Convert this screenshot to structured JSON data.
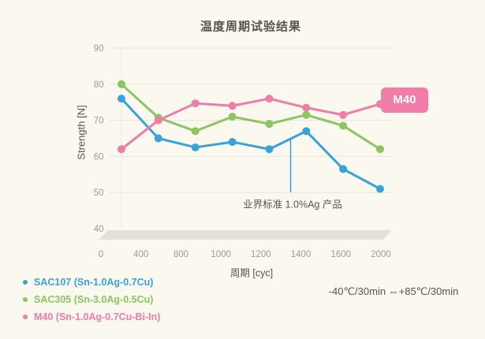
{
  "colors": {
    "background": "#FAF8EF",
    "gridline": "#E9E6DC",
    "axis_band": "#E4E1D8",
    "axis_text": "#A09D8F",
    "text_dark": "#57554B",
    "sac107_blue": "#38A3DB",
    "sac305_green": "#8CC561",
    "m40_pink": "#F07CA8"
  },
  "chart_data": {
    "type": "line",
    "title": "温度周期试验结果",
    "xlabel": "周期 [cyc]",
    "ylabel": "Strength [N]",
    "categories": [
      0,
      400,
      800,
      1000,
      1200,
      1400,
      1600,
      2000
    ],
    "y_ticks": [
      40,
      50,
      60,
      70,
      80,
      90
    ],
    "ylim": [
      40,
      90
    ],
    "grid": "horizontal",
    "legend_position": "bottom-left",
    "series": [
      {
        "name": "SAC107 (Sn-1.0Ag-0.7Cu)",
        "short": "SAC107",
        "color": "#38A3DB",
        "values": [
          76,
          65,
          62.5,
          64,
          62,
          67,
          56.5,
          51
        ]
      },
      {
        "name": "SAC305 (Sn-3.0Ag-0.5Cu)",
        "short": "SAC305",
        "color": "#8CC561",
        "values": [
          80,
          70.7,
          67,
          71,
          69,
          71.5,
          68.5,
          62
        ]
      },
      {
        "name": "M40 (Sn-1.0Ag-0.7Cu-Bi-In)",
        "short": "M40",
        "color": "#F07CA8",
        "values": [
          62,
          70,
          74.7,
          74,
          76,
          73.5,
          71.5,
          74.5
        ]
      }
    ],
    "annotation": {
      "text": "业界标准 1.0%Ag 产品",
      "points_to_series": "SAC107"
    },
    "series_badge": {
      "label": "M40",
      "color": "#F07CA8"
    }
  },
  "legend": {
    "items": [
      {
        "label": "SAC107 (Sn-1.0Ag-0.7Cu)",
        "color": "#38A3DB"
      },
      {
        "label": "SAC305 (Sn-3.0Ag-0.5Cu)",
        "color": "#8CC561"
      },
      {
        "label": "M40 (Sn-1.0Ag-0.7Cu-Bi-In)",
        "color": "#F07CA8"
      }
    ]
  },
  "condition_note": "-40℃/30min ⇔+85℃/30min"
}
